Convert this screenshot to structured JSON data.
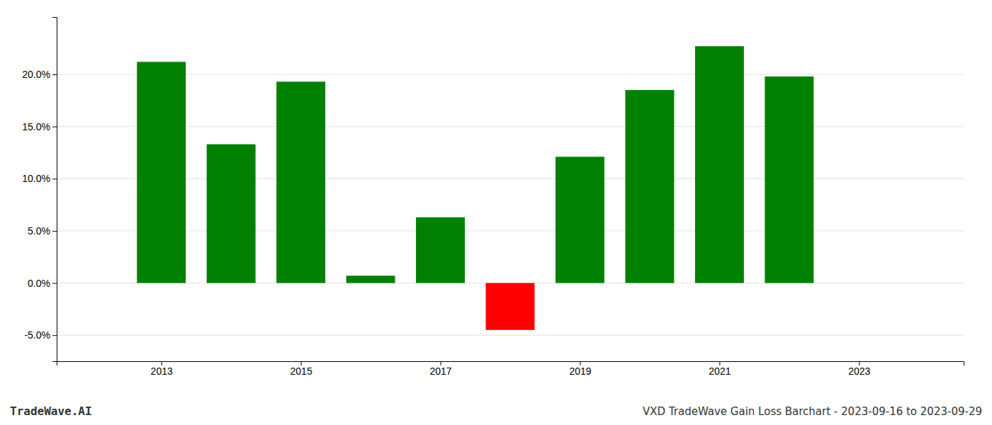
{
  "chart_data": {
    "type": "bar",
    "title": "VXD TradeWave Gain Loss Barchart - 2023-09-16 to 2023-09-29",
    "annotations": [
      "TradeWave.AI"
    ],
    "x": [
      2013,
      2014,
      2015,
      2016,
      2017,
      2018,
      2019,
      2020,
      2021,
      2022
    ],
    "values": [
      0.212,
      0.133,
      0.193,
      0.007,
      0.063,
      -0.045,
      0.121,
      0.185,
      0.227,
      0.198
    ],
    "colors": [
      "#008000",
      "#008000",
      "#008000",
      "#008000",
      "#008000",
      "#ff0000",
      "#008000",
      "#008000",
      "#008000",
      "#008000"
    ],
    "xlim": [
      2011.5,
      2024.5
    ],
    "ylim": [
      -0.075,
      0.255
    ],
    "xticks": [
      2013,
      2015,
      2017,
      2019,
      2021,
      2023
    ],
    "yticks": [
      {
        "value": -0.05,
        "label": "-5.0%"
      },
      {
        "value": 0.0,
        "label": "0.0%"
      },
      {
        "value": 0.05,
        "label": "5.0%"
      },
      {
        "value": 0.1,
        "label": "10.0%"
      },
      {
        "value": 0.15,
        "label": "15.0%"
      },
      {
        "value": 0.2,
        "label": "20.0%"
      }
    ],
    "grid": true
  }
}
